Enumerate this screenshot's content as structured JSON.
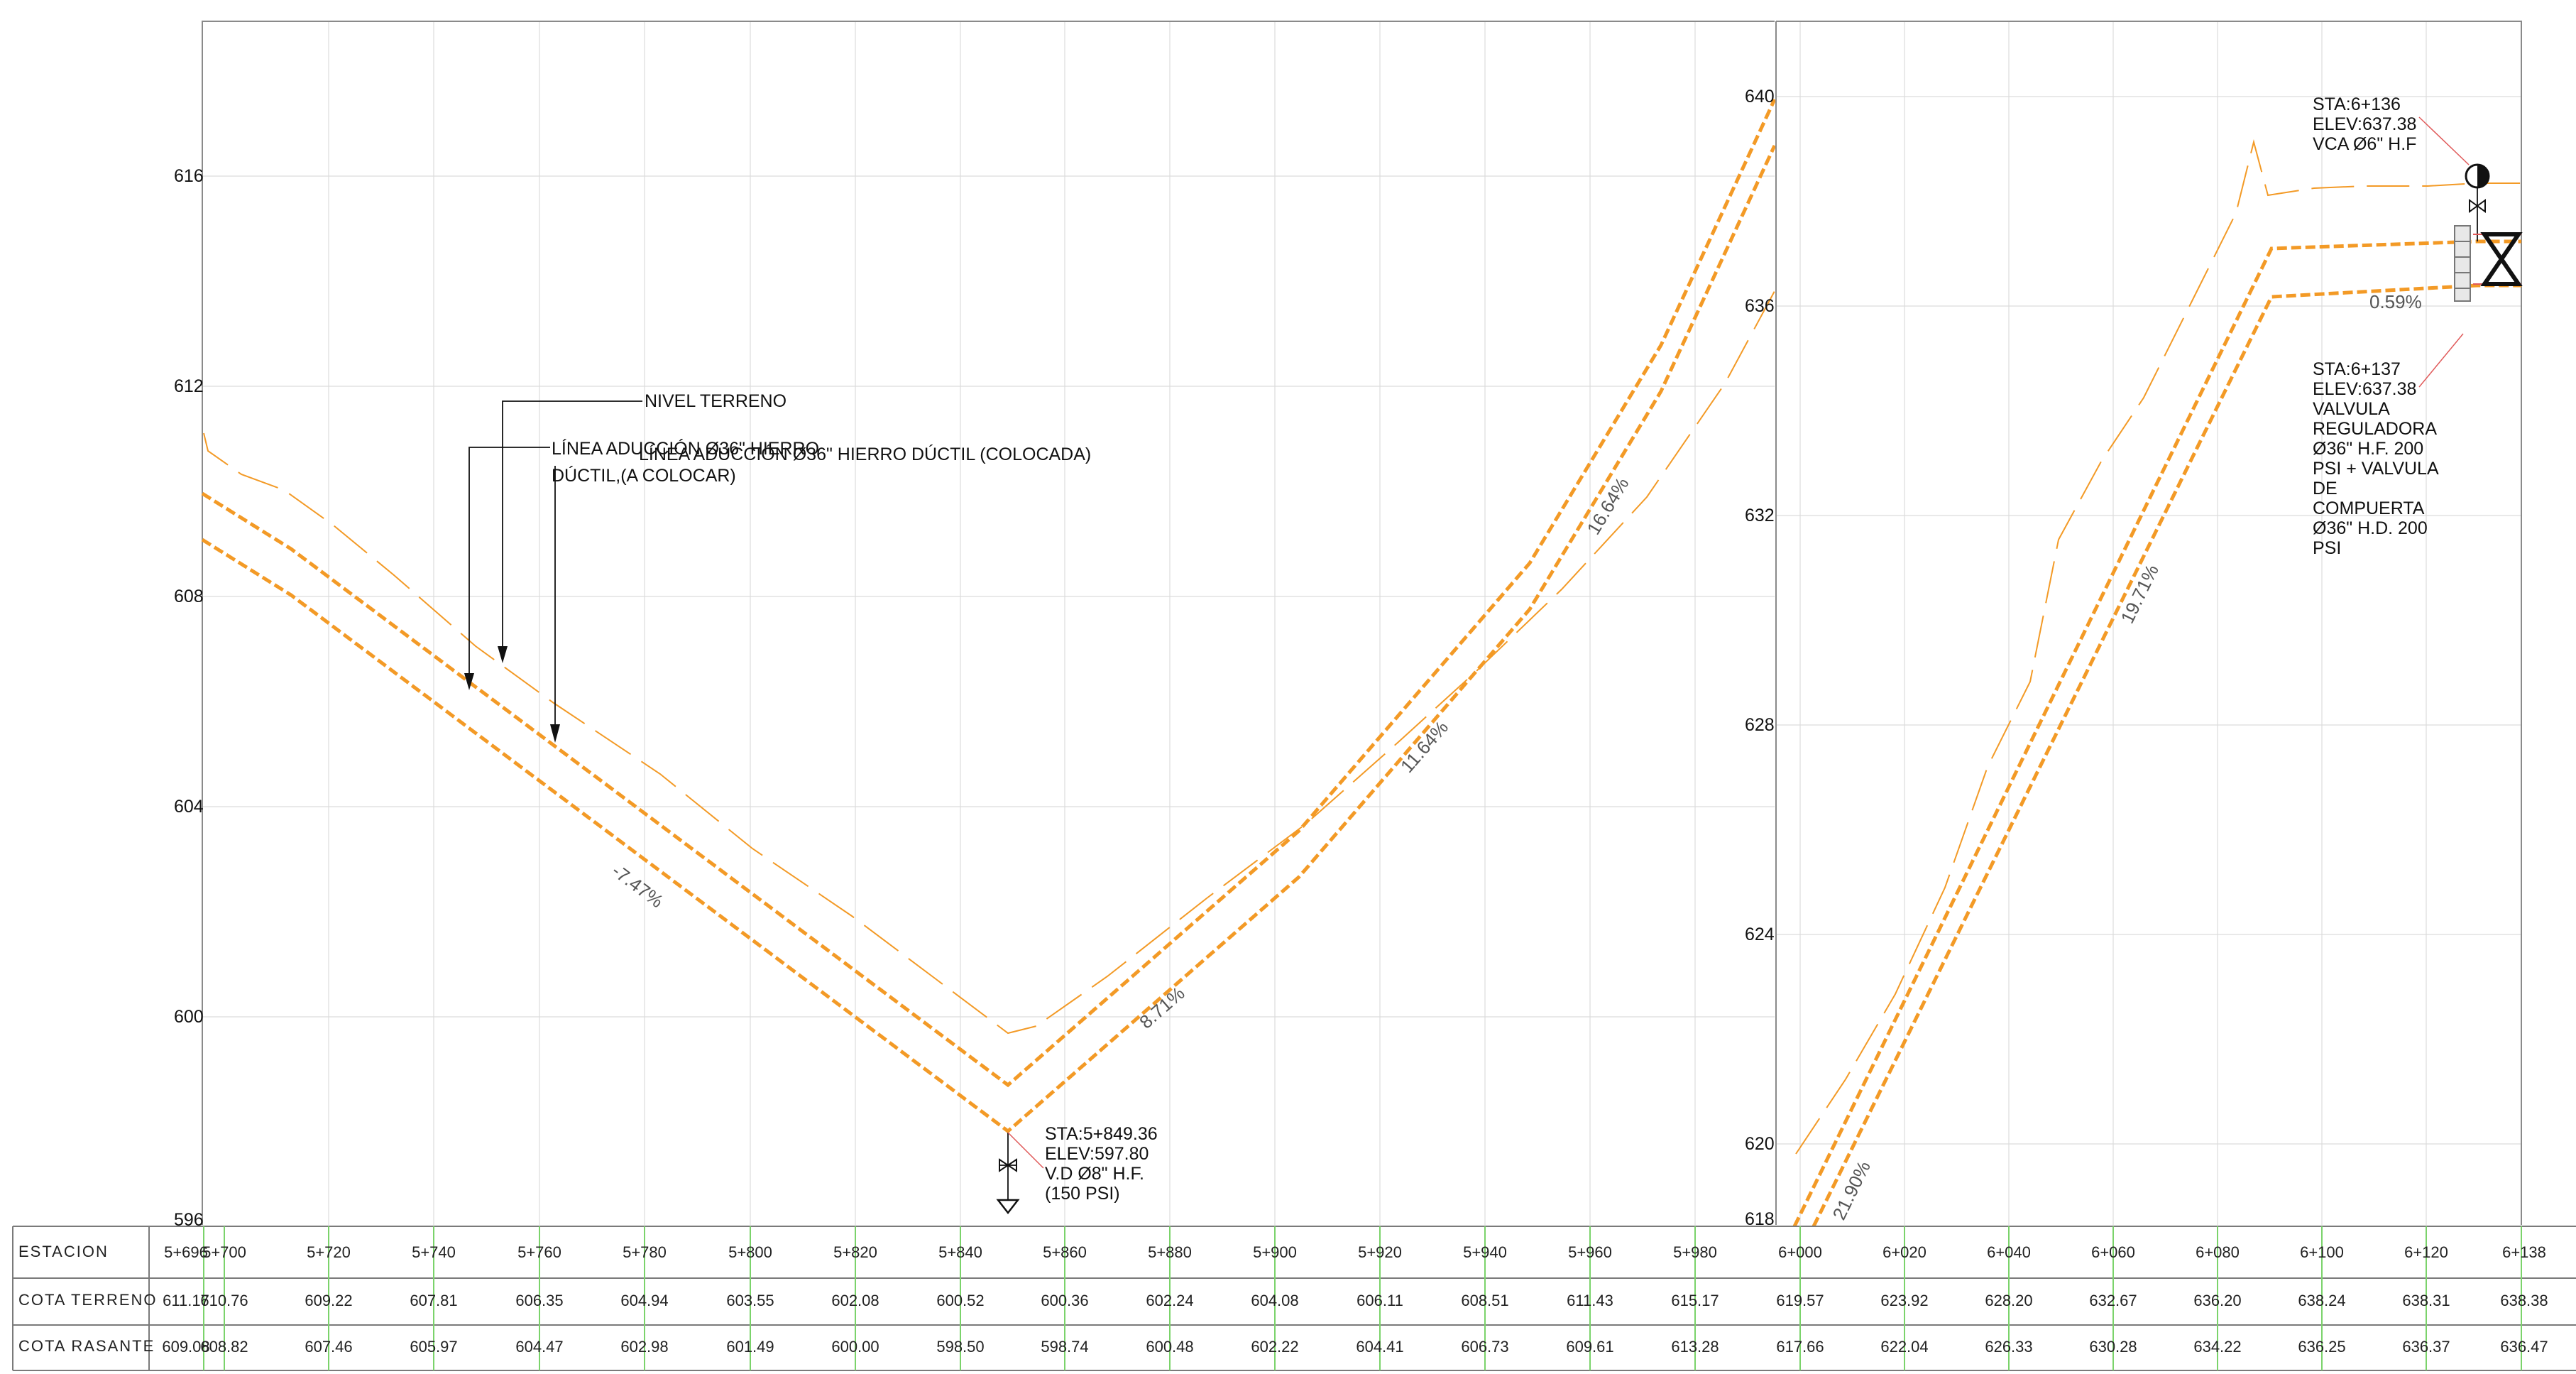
{
  "left_panel": {
    "elevation_labels": [
      "616",
      "612",
      "608",
      "604",
      "600",
      "596"
    ],
    "notes": {
      "nivel_terreno": "NIVEL TERRENO",
      "linea_colocar_1": "LÍNEA ADUCCIÓN Ø36\" HIERRO",
      "linea_colocar_2": "DÚCTIL,(A COLOCAR)",
      "linea_colocada": "LÍNEA ADUCCIÓN Ø36\" HIERRO DÚCTIL (COLOCADA)"
    },
    "slopes": [
      "-7.47%",
      "8.71%",
      "11.64%",
      "16.64%"
    ],
    "low_point": {
      "lines": [
        "STA:5+849.36",
        "ELEV:597.80",
        "V.D Ø8\" H.F.",
        "(150 PSI)"
      ]
    }
  },
  "right_panel": {
    "elevation_labels": [
      "640",
      "636",
      "632",
      "628",
      "624",
      "620",
      "618"
    ],
    "slopes": [
      "21.90%",
      "19.71%",
      "0.59%"
    ],
    "callout_vca": {
      "lines": [
        "STA:6+136",
        "ELEV:637.38",
        "VCA Ø6\" H.F"
      ]
    },
    "callout_valvula": {
      "lines": [
        "STA:6+137",
        "ELEV:637.38",
        "VALVULA",
        "REGULADORA",
        "Ø36\" H.F. 200",
        "PSI + VALVULA",
        "DE",
        "COMPUERTA",
        "Ø36\" H.D. 200",
        "PSI"
      ]
    }
  },
  "table": {
    "rows": [
      {
        "label": "ESTACION",
        "values": [
          "5+696",
          "5+700",
          "5+720",
          "5+740",
          "5+760",
          "5+780",
          "5+800",
          "5+820",
          "5+840",
          "5+860",
          "5+880",
          "5+900",
          "5+920",
          "5+940",
          "5+960",
          "5+980",
          "6+000",
          "6+020",
          "6+040",
          "6+060",
          "6+080",
          "6+100",
          "6+120",
          "6+138"
        ]
      },
      {
        "label": "COTA  TERRENO",
        "values": [
          "611.17",
          "610.76",
          "609.22",
          "607.81",
          "606.35",
          "604.94",
          "603.55",
          "602.08",
          "600.52",
          "600.36",
          "602.24",
          "604.08",
          "606.11",
          "608.51",
          "611.43",
          "615.17",
          "619.57",
          "623.92",
          "628.20",
          "632.67",
          "636.20",
          "638.24",
          "638.31",
          "638.38"
        ]
      },
      {
        "label": "COTA  RASANTE",
        "values": [
          "609.08",
          "608.82",
          "607.46",
          "605.97",
          "604.47",
          "602.98",
          "601.49",
          "600.00",
          "598.50",
          "598.74",
          "600.48",
          "602.22",
          "604.41",
          "606.73",
          "609.61",
          "613.28",
          "617.66",
          "622.04",
          "626.33",
          "630.28",
          "634.22",
          "636.25",
          "636.37",
          "636.47"
        ]
      }
    ]
  },
  "colors": {
    "pipe": "#f39a26",
    "grid": "#dcdcdc",
    "station_tick": "#7bd36b",
    "leader_red": "#e05a5a"
  }
}
